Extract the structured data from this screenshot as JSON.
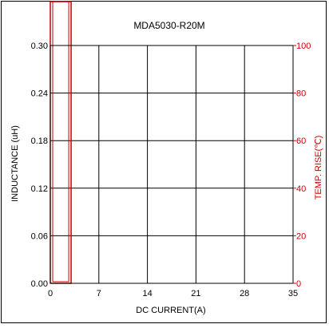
{
  "chart_data": {
    "type": "line",
    "title": "MDA5030-R20M",
    "xlabel": "DC CURRENT(A)",
    "ylabel": "INDUCTANCE (uH)",
    "y2label": "TEMP. RISE(℃)",
    "xlim": [
      0,
      35
    ],
    "ylim": [
      0,
      0.3
    ],
    "y2lim": [
      0,
      100
    ],
    "x_ticks": [
      "0",
      "7",
      "14",
      "21",
      "28",
      "35"
    ],
    "y_ticks": [
      "0.00",
      "0.06",
      "0.12",
      "0.18",
      "0.24",
      "0.30"
    ],
    "y2_ticks": [
      "0",
      "20",
      "40",
      "60",
      "80",
      "100"
    ],
    "grid": true,
    "series": [
      {
        "axis": "y2",
        "color": "#cc0000",
        "x": [
          0,
          0,
          3,
          3,
          0
        ],
        "y": [
          0,
          100,
          100,
          0,
          0
        ]
      }
    ]
  }
}
